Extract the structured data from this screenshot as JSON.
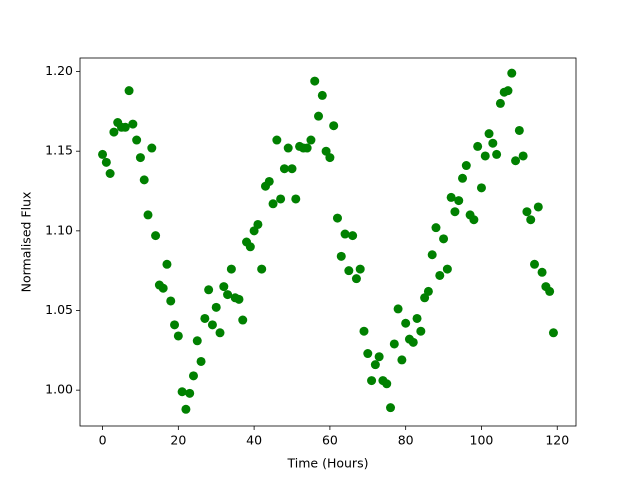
{
  "chart_data": {
    "type": "scatter",
    "xlabel": "Time (Hours)",
    "ylabel": "Normalised Flux",
    "x": [
      0,
      1,
      2,
      3,
      4,
      5,
      6,
      7,
      8,
      9,
      10,
      11,
      12,
      13,
      14,
      15,
      16,
      17,
      18,
      19,
      20,
      21,
      22,
      23,
      24,
      25,
      26,
      27,
      28,
      29,
      30,
      31,
      32,
      33,
      34,
      35,
      36,
      37,
      38,
      39,
      40,
      41,
      42,
      43,
      44,
      45,
      46,
      47,
      48,
      49,
      50,
      51,
      52,
      53,
      54,
      55,
      56,
      57,
      58,
      59,
      60,
      61,
      62,
      63,
      64,
      65,
      66,
      67,
      68,
      69,
      70,
      71,
      72,
      73,
      74,
      75,
      76,
      77,
      78,
      79,
      80,
      81,
      82,
      83,
      84,
      85,
      86,
      87,
      88,
      89,
      90,
      91,
      92,
      93,
      94,
      95,
      96,
      97,
      98,
      99,
      100,
      101,
      102,
      103,
      104,
      105,
      106,
      107,
      108,
      109,
      110,
      111,
      112,
      113,
      114,
      115,
      116,
      117,
      118,
      119
    ],
    "values": [
      1.148,
      1.143,
      1.136,
      1.162,
      1.168,
      1.165,
      1.165,
      1.188,
      1.167,
      1.157,
      1.146,
      1.132,
      1.11,
      1.152,
      1.097,
      1.066,
      1.064,
      1.079,
      1.056,
      1.041,
      1.034,
      0.999,
      0.988,
      0.998,
      1.009,
      1.031,
      1.018,
      1.045,
      1.063,
      1.041,
      1.052,
      1.036,
      1.065,
      1.06,
      1.076,
      1.058,
      1.057,
      1.044,
      1.093,
      1.09,
      1.1,
      1.104,
      1.076,
      1.128,
      1.131,
      1.117,
      1.157,
      1.12,
      1.139,
      1.152,
      1.139,
      1.12,
      1.153,
      1.152,
      1.152,
      1.157,
      1.194,
      1.172,
      1.185,
      1.15,
      1.146,
      1.166,
      1.108,
      1.084,
      1.098,
      1.075,
      1.097,
      1.07,
      1.076,
      1.037,
      1.023,
      1.006,
      1.016,
      1.021,
      1.006,
      1.004,
      0.989,
      1.029,
      1.051,
      1.019,
      1.042,
      1.032,
      1.03,
      1.045,
      1.037,
      1.058,
      1.062,
      1.085,
      1.102,
      1.072,
      1.095,
      1.076,
      1.121,
      1.112,
      1.119,
      1.133,
      1.141,
      1.11,
      1.107,
      1.153,
      1.127,
      1.147,
      1.161,
      1.155,
      1.148,
      1.18,
      1.187,
      1.188,
      1.199,
      1.144,
      1.163,
      1.147,
      1.112,
      1.107,
      1.079,
      1.115,
      1.074,
      1.065,
      1.062,
      1.036
    ],
    "color": "#008000",
    "xlim": [
      -5.95,
      124.95
    ],
    "xticks": [
      0,
      20,
      40,
      60,
      80,
      100,
      120
    ],
    "ylim": [
      0.9775,
      1.2085
    ],
    "yticks": [
      {
        "value": 1.0,
        "label": "1.00"
      },
      {
        "value": 1.05,
        "label": "1.05"
      },
      {
        "value": 1.1,
        "label": "1.10"
      },
      {
        "value": 1.15,
        "label": "1.15"
      },
      {
        "value": 1.2,
        "label": "1.20"
      }
    ]
  }
}
